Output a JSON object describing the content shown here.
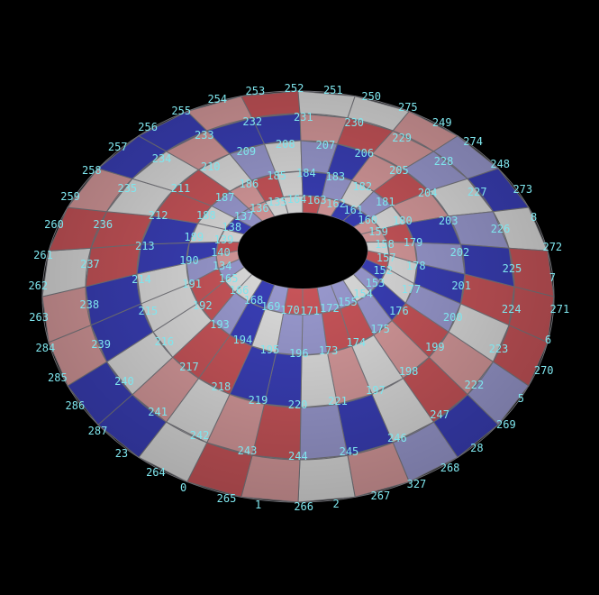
{
  "scene": {
    "background": "#000000",
    "label_color": "#7fe6ee",
    "colors": {
      "surface": "#dcdcdc",
      "red": "#c9555a",
      "blue": "#3a3fb8",
      "grid": "#7a7a80"
    }
  },
  "vertex_labels": {
    "outer_ring": [
      "287",
      "23",
      "264",
      "0",
      "265",
      "1",
      "266",
      "2",
      "267",
      "327",
      "268",
      "28",
      "269",
      "5",
      "270",
      "6",
      "271",
      "7",
      "272",
      "8",
      "273",
      "248",
      "274",
      "249",
      "275",
      "250",
      "251",
      "252",
      "253",
      "254",
      "255",
      "256",
      "257",
      "258",
      "259",
      "260",
      "261",
      "262",
      "263",
      "284",
      "285",
      "286"
    ],
    "ring_2": [
      "240",
      "241",
      "242",
      "243",
      "244",
      "245",
      "246",
      "247",
      "222",
      "223",
      "224",
      "225",
      "226",
      "227",
      "228",
      "229",
      "230",
      "231",
      "232",
      "233",
      "234",
      "235",
      "236",
      "237",
      "238",
      "239"
    ],
    "ring_3": [
      "216",
      "217",
      "218",
      "219",
      "220",
      "221",
      "197",
      "198",
      "199",
      "200",
      "201",
      "202",
      "203",
      "204",
      "205",
      "206",
      "207",
      "208",
      "209",
      "210",
      "211",
      "212",
      "213",
      "214",
      "215"
    ],
    "ring_4": [
      "192",
      "193",
      "194",
      "195",
      "196",
      "173",
      "174",
      "175",
      "176",
      "177",
      "178",
      "179",
      "180",
      "181",
      "182",
      "183",
      "184",
      "185",
      "186",
      "187",
      "188",
      "189",
      "190",
      "191"
    ],
    "inner_ring": [
      "165",
      "166",
      "168",
      "169",
      "170",
      "171",
      "172",
      "155",
      "154",
      "153",
      "152",
      "157",
      "158",
      "159",
      "160",
      "161",
      "162",
      "163",
      "164",
      "135",
      "136",
      "137",
      "138",
      "139",
      "140",
      "134"
    ]
  }
}
